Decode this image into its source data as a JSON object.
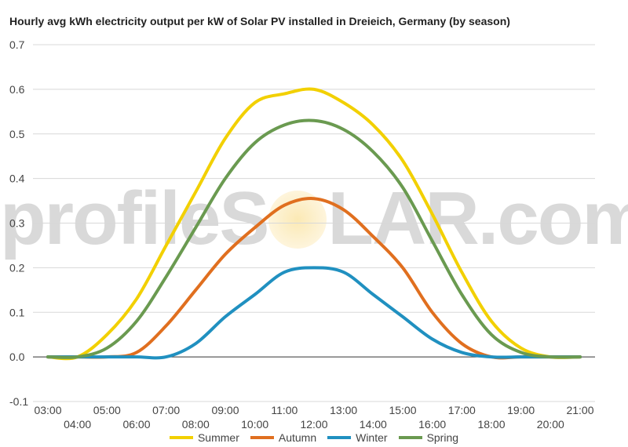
{
  "chart_data": {
    "type": "line",
    "title": "Hourly avg kWh electricity output per kW of Solar PV installed in Dreieich, Germany (by season)",
    "xlabel": "",
    "ylabel": "",
    "ylim": [
      -0.1,
      0.7
    ],
    "yticks": [
      "-0.1",
      "0.0",
      "0.1",
      "0.2",
      "0.3",
      "0.4",
      "0.5",
      "0.6",
      "0.7"
    ],
    "x": [
      "03:00",
      "04:00",
      "05:00",
      "06:00",
      "07:00",
      "08:00",
      "09:00",
      "10:00",
      "11:00",
      "12:00",
      "13:00",
      "14:00",
      "15:00",
      "16:00",
      "17:00",
      "18:00",
      "19:00",
      "20:00",
      "21:00"
    ],
    "grid": true,
    "legend": "bottom",
    "series": [
      {
        "name": "Summer",
        "color": "#f2d000",
        "values": [
          0.0,
          0.0,
          0.05,
          0.13,
          0.25,
          0.37,
          0.49,
          0.57,
          0.59,
          0.6,
          0.57,
          0.52,
          0.44,
          0.32,
          0.19,
          0.08,
          0.02,
          0.0,
          0.0
        ]
      },
      {
        "name": "Autumn",
        "color": "#e06f1f",
        "values": [
          0.0,
          0.0,
          0.0,
          0.01,
          0.07,
          0.15,
          0.23,
          0.29,
          0.34,
          0.355,
          0.33,
          0.27,
          0.2,
          0.1,
          0.03,
          0.0,
          0.0,
          0.0,
          0.0
        ]
      },
      {
        "name": "Winter",
        "color": "#2090c0",
        "values": [
          0.0,
          0.0,
          0.0,
          0.0,
          0.0,
          0.03,
          0.09,
          0.14,
          0.19,
          0.2,
          0.19,
          0.14,
          0.09,
          0.04,
          0.01,
          0.0,
          0.0,
          0.0,
          0.0
        ]
      },
      {
        "name": "Spring",
        "color": "#6a9a50",
        "values": [
          0.0,
          0.0,
          0.02,
          0.08,
          0.18,
          0.29,
          0.4,
          0.48,
          0.52,
          0.53,
          0.51,
          0.46,
          0.38,
          0.26,
          0.14,
          0.05,
          0.01,
          0.0,
          0.0
        ]
      }
    ],
    "watermark": {
      "before": "profileS",
      "after": "LAR.com"
    }
  }
}
